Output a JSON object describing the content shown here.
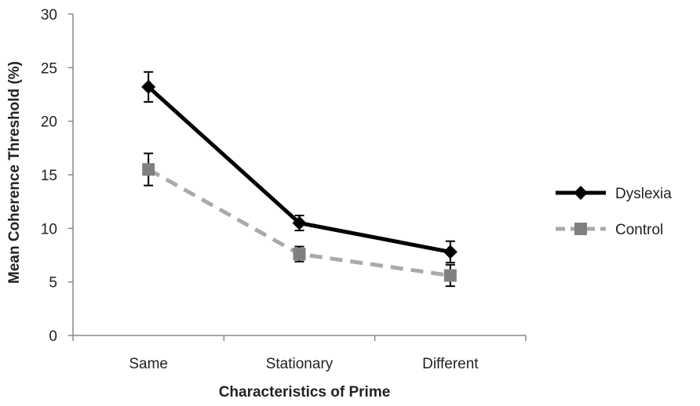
{
  "chart_data": {
    "type": "line",
    "title": "",
    "xlabel": "Characteristics of Prime",
    "ylabel": "Mean Coherence Threshold (%)",
    "categories": [
      "Same",
      "Stationary",
      "Different"
    ],
    "ylim": [
      0,
      30
    ],
    "yticks": [
      0,
      5,
      10,
      15,
      20,
      25,
      30
    ],
    "grid": false,
    "legend_position": "right",
    "series": [
      {
        "name": "Dyslexia",
        "values": [
          23.2,
          10.5,
          7.8
        ],
        "error": [
          1.4,
          0.7,
          1.0
        ],
        "color": "#000000",
        "line_style": "solid",
        "marker": "diamond"
      },
      {
        "name": "Control",
        "values": [
          15.5,
          7.6,
          5.6
        ],
        "error": [
          1.5,
          0.7,
          1.0
        ],
        "color": "#a9a9a9",
        "marker_color": "#808080",
        "line_style": "dashed",
        "marker": "square"
      }
    ]
  }
}
